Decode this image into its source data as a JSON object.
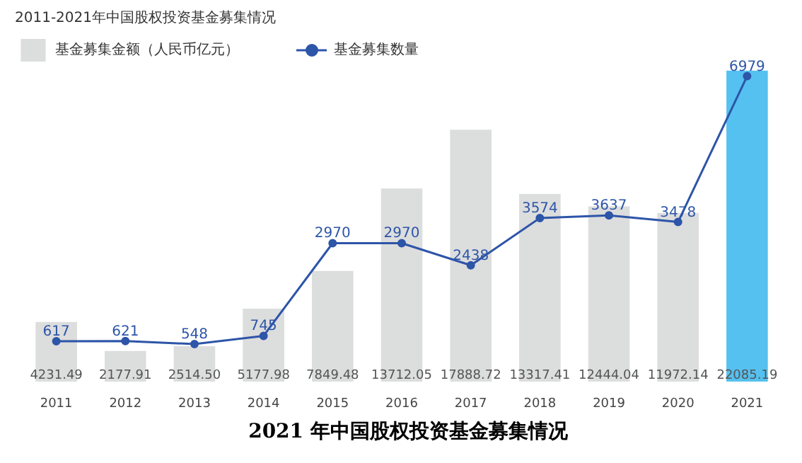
{
  "chart_data": {
    "type": "bar",
    "title": "2011-2021年中国股权投资基金募集情况",
    "categories": [
      "2011",
      "2012",
      "2013",
      "2014",
      "2015",
      "2016",
      "2017",
      "2018",
      "2019",
      "2020",
      "2021"
    ],
    "series": [
      {
        "name": "基金募集金额（人民币亿元）",
        "colors": [
          "#dcdddd",
          "#dcdddd",
          "#dcdddd",
          "#dcdddd",
          "#dcdddd",
          "#dcdddd",
          "#dcdddd",
          "#dcdddd",
          "#dcdddd",
          "#dcdddd",
          "#55c1f0"
        ],
        "values": [
          4231.49,
          2177.91,
          2514.5,
          5177.98,
          7849.48,
          13712.05,
          17888.72,
          13317.41,
          12444.04,
          11972.14,
          22085.19
        ],
        "value_labels": [
          "4231.49",
          "2177.91",
          "2514.50",
          "5177.98",
          "7849.48",
          "13712.05",
          "17888.72",
          "13317.41",
          "12444.04",
          "11972.14",
          "22085.19"
        ]
      },
      {
        "name": "基金募集数量",
        "type": "line",
        "axis": "y2",
        "color": "#2d55a8",
        "values": [
          617,
          621,
          548,
          745,
          2970,
          2970,
          2438,
          3574,
          3637,
          3478,
          6979
        ]
      }
    ],
    "data_labels": true,
    "legend": "top left",
    "marker": "circle",
    "line_style": "solid",
    "annotations": [
      "2021 年中国股权投资基金募集情况"
    ]
  }
}
